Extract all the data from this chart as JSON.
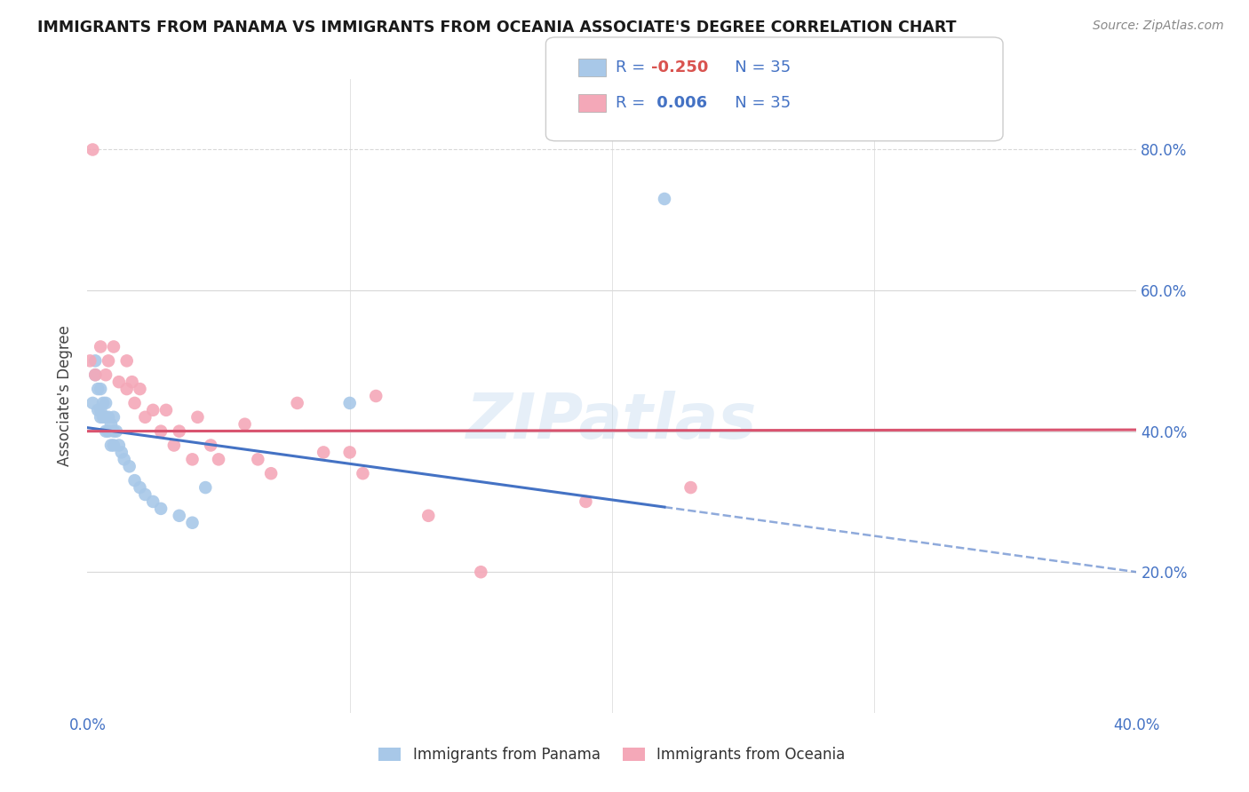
{
  "title": "IMMIGRANTS FROM PANAMA VS IMMIGRANTS FROM OCEANIA ASSOCIATE'S DEGREE CORRELATION CHART",
  "source": "Source: ZipAtlas.com",
  "ylabel": "Associate's Degree",
  "x_min": 0.0,
  "x_max": 0.4,
  "y_min": 0.0,
  "y_max": 0.9,
  "legend_label1": "Immigrants from Panama",
  "legend_label2": "Immigrants from Oceania",
  "panama_color": "#a8c8e8",
  "oceania_color": "#f4a8b8",
  "panama_line_color": "#4472c4",
  "oceania_line_color": "#d9536f",
  "watermark": "ZIPatlas",
  "background_color": "#ffffff",
  "grid_color": "#d8d8d8",
  "panama_x": [
    0.002,
    0.003,
    0.003,
    0.004,
    0.004,
    0.005,
    0.005,
    0.005,
    0.006,
    0.006,
    0.007,
    0.007,
    0.007,
    0.008,
    0.008,
    0.009,
    0.009,
    0.01,
    0.01,
    0.01,
    0.011,
    0.012,
    0.013,
    0.014,
    0.016,
    0.018,
    0.02,
    0.022,
    0.025,
    0.028,
    0.035,
    0.04,
    0.045,
    0.1,
    0.22
  ],
  "panama_y": [
    0.44,
    0.48,
    0.5,
    0.46,
    0.43,
    0.46,
    0.43,
    0.42,
    0.44,
    0.42,
    0.44,
    0.42,
    0.4,
    0.42,
    0.4,
    0.41,
    0.38,
    0.42,
    0.4,
    0.38,
    0.4,
    0.38,
    0.37,
    0.36,
    0.35,
    0.33,
    0.32,
    0.31,
    0.3,
    0.29,
    0.28,
    0.27,
    0.32,
    0.44,
    0.73
  ],
  "oceania_x": [
    0.001,
    0.002,
    0.003,
    0.005,
    0.007,
    0.008,
    0.01,
    0.012,
    0.015,
    0.015,
    0.017,
    0.018,
    0.02,
    0.022,
    0.025,
    0.028,
    0.03,
    0.033,
    0.035,
    0.04,
    0.042,
    0.047,
    0.05,
    0.06,
    0.065,
    0.07,
    0.08,
    0.09,
    0.1,
    0.105,
    0.11,
    0.13,
    0.15,
    0.19,
    0.23
  ],
  "oceania_y": [
    0.5,
    0.8,
    0.48,
    0.52,
    0.48,
    0.5,
    0.52,
    0.47,
    0.5,
    0.46,
    0.47,
    0.44,
    0.46,
    0.42,
    0.43,
    0.4,
    0.43,
    0.38,
    0.4,
    0.36,
    0.42,
    0.38,
    0.36,
    0.41,
    0.36,
    0.34,
    0.44,
    0.37,
    0.37,
    0.34,
    0.45,
    0.28,
    0.2,
    0.3,
    0.32
  ]
}
